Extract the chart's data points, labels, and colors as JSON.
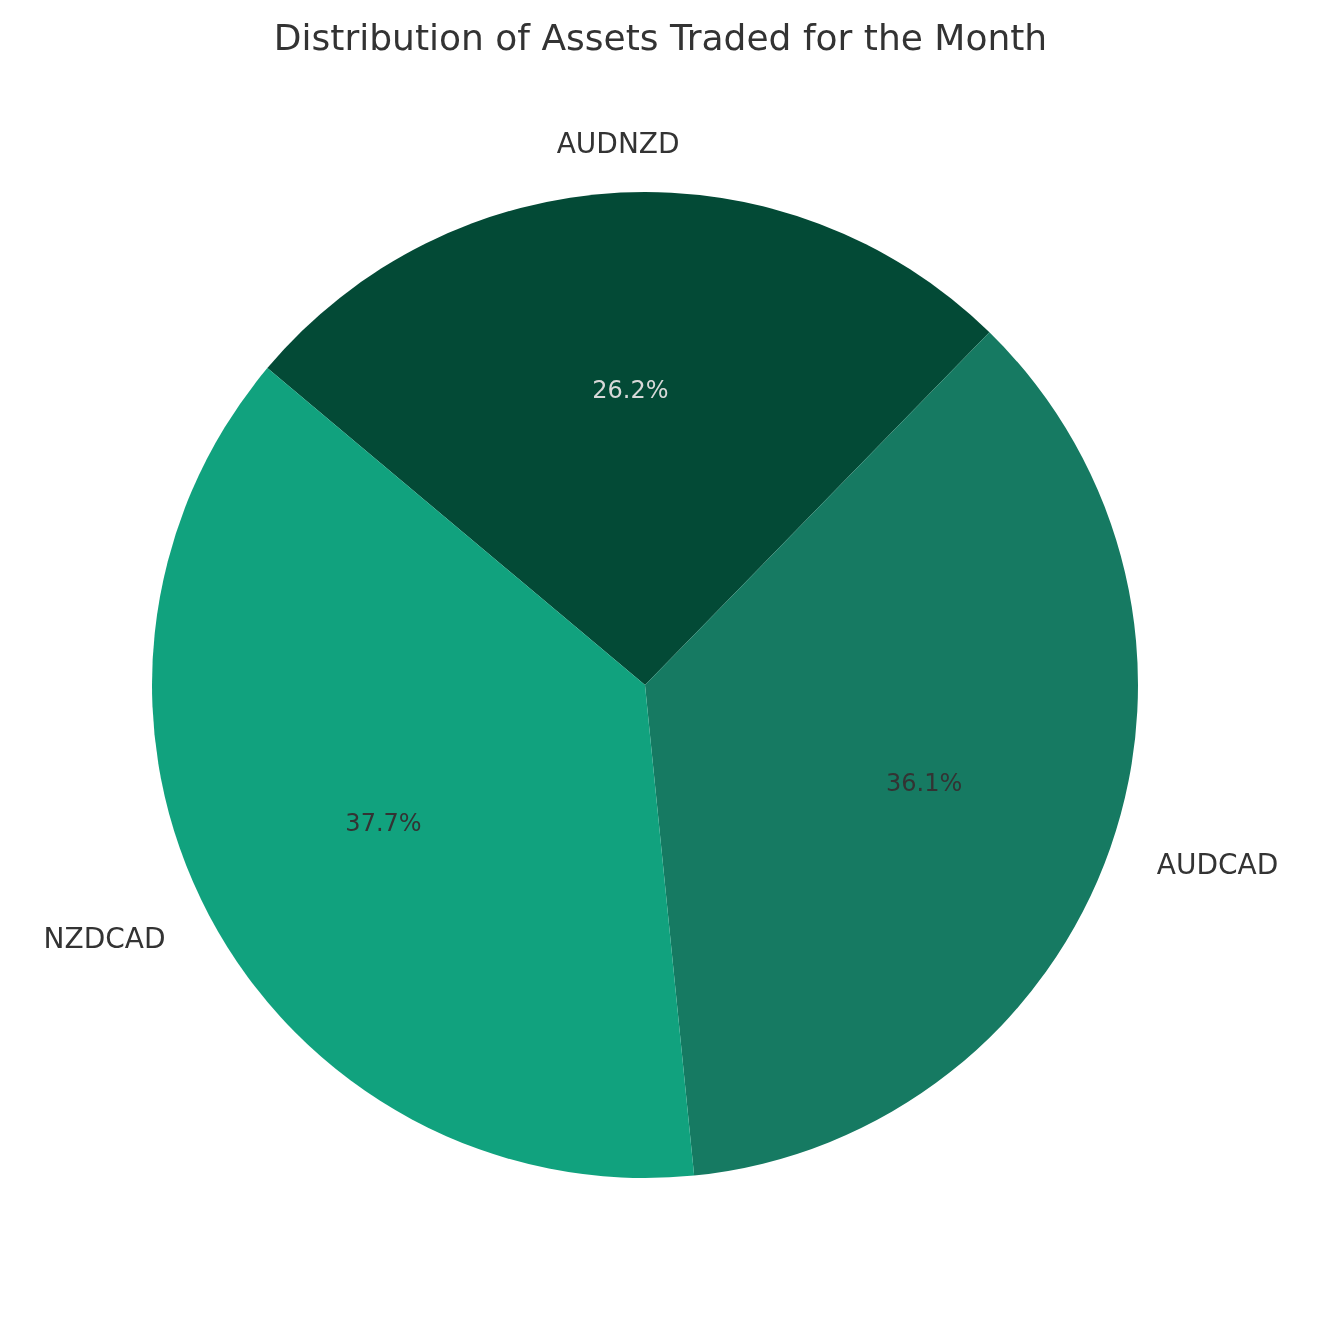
{
  "chart_data": {
    "type": "pie",
    "title": "Distribution of Assets Traded for the Month",
    "categories": [
      "AUDNZD",
      "AUDCAD",
      "NZDCAD"
    ],
    "values": [
      26.2,
      36.1,
      37.7
    ],
    "value_labels": [
      "26.2%",
      "36.1%",
      "37.7%"
    ],
    "colors": [
      "#034a36",
      "#167a62",
      "#11a27e"
    ]
  }
}
